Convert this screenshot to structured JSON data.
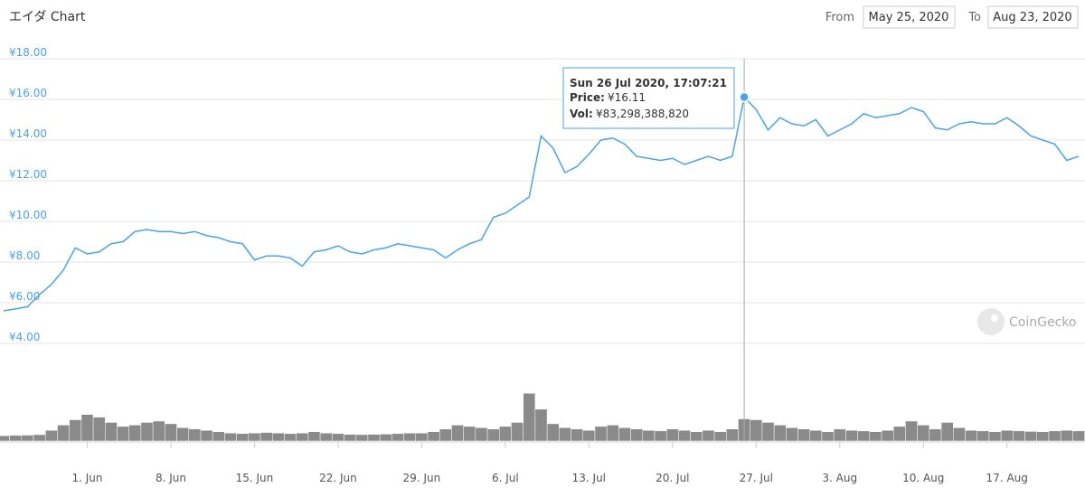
{
  "title": "エイダ Chart",
  "range": {
    "from_label": "From",
    "from": "May 25, 2020",
    "to_label": "To",
    "to": "Aug 23, 2020"
  },
  "watermark": "CoinGecko",
  "tooltip": {
    "time": "Sun 26 Jul 2020, 17:07:21",
    "price_label": "Price:",
    "price": "¥16.11",
    "vol_label": "Vol:",
    "vol": "¥83,298,388,820"
  },
  "chart_data": {
    "type": "line",
    "x": [
      "2020-05-25",
      "2020-05-26",
      "2020-05-27",
      "2020-05-28",
      "2020-05-29",
      "2020-05-30",
      "2020-05-31",
      "2020-06-01",
      "2020-06-02",
      "2020-06-03",
      "2020-06-04",
      "2020-06-05",
      "2020-06-06",
      "2020-06-07",
      "2020-06-08",
      "2020-06-09",
      "2020-06-10",
      "2020-06-11",
      "2020-06-12",
      "2020-06-13",
      "2020-06-14",
      "2020-06-15",
      "2020-06-16",
      "2020-06-17",
      "2020-06-18",
      "2020-06-19",
      "2020-06-20",
      "2020-06-21",
      "2020-06-22",
      "2020-06-23",
      "2020-06-24",
      "2020-06-25",
      "2020-06-26",
      "2020-06-27",
      "2020-06-28",
      "2020-06-29",
      "2020-06-30",
      "2020-07-01",
      "2020-07-02",
      "2020-07-03",
      "2020-07-04",
      "2020-07-05",
      "2020-07-06",
      "2020-07-07",
      "2020-07-08",
      "2020-07-09",
      "2020-07-10",
      "2020-07-11",
      "2020-07-12",
      "2020-07-13",
      "2020-07-14",
      "2020-07-15",
      "2020-07-16",
      "2020-07-17",
      "2020-07-18",
      "2020-07-19",
      "2020-07-20",
      "2020-07-21",
      "2020-07-22",
      "2020-07-23",
      "2020-07-24",
      "2020-07-25",
      "2020-07-26",
      "2020-07-27",
      "2020-07-28",
      "2020-07-29",
      "2020-07-30",
      "2020-07-31",
      "2020-08-01",
      "2020-08-02",
      "2020-08-03",
      "2020-08-04",
      "2020-08-05",
      "2020-08-06",
      "2020-08-07",
      "2020-08-08",
      "2020-08-09",
      "2020-08-10",
      "2020-08-11",
      "2020-08-12",
      "2020-08-13",
      "2020-08-14",
      "2020-08-15",
      "2020-08-16",
      "2020-08-17",
      "2020-08-18",
      "2020-08-19",
      "2020-08-20",
      "2020-08-21",
      "2020-08-22",
      "2020-08-23"
    ],
    "series": [
      {
        "color": "#4aa3ea",
        "values": [
          5.6,
          5.7,
          5.8,
          6.4,
          6.9,
          7.6,
          8.7,
          8.4,
          8.5,
          8.9,
          9.0,
          9.5,
          9.6,
          9.5,
          9.5,
          9.4,
          9.5,
          9.3,
          9.2,
          9.0,
          8.9,
          8.1,
          8.3,
          8.3,
          8.2,
          7.8,
          8.5,
          8.6,
          8.8,
          8.5,
          8.4,
          8.6,
          8.7,
          8.9,
          8.8,
          8.7,
          8.6,
          8.2,
          8.6,
          8.9,
          9.1,
          10.2,
          10.4,
          10.8,
          11.2,
          14.2,
          13.6,
          12.4,
          12.7,
          13.3,
          14.0,
          14.1,
          13.8,
          13.2,
          13.1,
          13.0,
          13.1,
          12.8,
          13.0,
          13.2,
          13.0,
          13.2,
          16.11,
          15.5,
          14.5,
          15.1,
          14.8,
          14.7,
          15.0,
          14.2,
          14.5,
          14.8,
          15.3,
          15.1,
          15.2,
          15.3,
          15.6,
          15.4,
          14.6,
          14.5,
          14.8,
          14.9,
          14.8,
          14.8,
          15.1,
          14.7,
          14.2,
          14.0,
          13.8,
          13.0,
          13.2
        ]
      },
      {
        "color": "#8a8a8a",
        "axis": "y2",
        "values": [
          20000000000,
          21000000000,
          22000000000,
          24000000000,
          40000000000,
          60000000000,
          80000000000,
          100000000000,
          90000000000,
          70000000000,
          55000000000,
          60000000000,
          70000000000,
          75000000000,
          65000000000,
          50000000000,
          45000000000,
          40000000000,
          35000000000,
          30000000000,
          28000000000,
          30000000000,
          32000000000,
          30000000000,
          28000000000,
          30000000000,
          35000000000,
          30000000000,
          28000000000,
          25000000000,
          24000000000,
          25000000000,
          26000000000,
          28000000000,
          30000000000,
          30000000000,
          35000000000,
          45000000000,
          60000000000,
          55000000000,
          50000000000,
          45000000000,
          55000000000,
          70000000000,
          180000000000,
          120000000000,
          65000000000,
          50000000000,
          45000000000,
          40000000000,
          55000000000,
          60000000000,
          50000000000,
          45000000000,
          40000000000,
          38000000000,
          45000000000,
          40000000000,
          35000000000,
          40000000000,
          35000000000,
          45000000000,
          83298388820,
          80000000000,
          70000000000,
          60000000000,
          50000000000,
          45000000000,
          40000000000,
          35000000000,
          45000000000,
          40000000000,
          38000000000,
          35000000000,
          40000000000,
          55000000000,
          75000000000,
          60000000000,
          45000000000,
          70000000000,
          50000000000,
          40000000000,
          38000000000,
          35000000000,
          40000000000,
          38000000000,
          36000000000,
          35000000000,
          38000000000,
          40000000000,
          38000000000
        ]
      }
    ],
    "xlim": [
      "2020-05-25",
      "2020-08-23"
    ],
    "xticks": [
      {
        "value": "2020-06-01",
        "label": "1. Jun"
      },
      {
        "value": "2020-06-08",
        "label": "8. Jun"
      },
      {
        "value": "2020-06-15",
        "label": "15. Jun"
      },
      {
        "value": "2020-06-22",
        "label": "22. Jun"
      },
      {
        "value": "2020-06-29",
        "label": "29. Jun"
      },
      {
        "value": "2020-07-06",
        "label": "6. Jul"
      },
      {
        "value": "2020-07-13",
        "label": "13. Jul"
      },
      {
        "value": "2020-07-20",
        "label": "20. Jul"
      },
      {
        "value": "2020-07-27",
        "label": "27. Jul"
      },
      {
        "value": "2020-08-03",
        "label": "3. Aug"
      },
      {
        "value": "2020-08-10",
        "label": "10. Aug"
      },
      {
        "value": "2020-08-17",
        "label": "17. Aug"
      }
    ],
    "ylim": [
      4,
      18
    ],
    "yticks": [
      {
        "value": 4,
        "label": "¥4.00"
      },
      {
        "value": 6,
        "label": "¥6.00"
      },
      {
        "value": 8,
        "label": "¥8.00"
      },
      {
        "value": 10,
        "label": "¥10.00"
      },
      {
        "value": 12,
        "label": "¥12.00"
      },
      {
        "value": 14,
        "label": "¥14.00"
      },
      {
        "value": 16,
        "label": "¥16.00"
      },
      {
        "value": 18,
        "label": "¥18.00"
      }
    ],
    "y2lim": [
      0,
      300000000000
    ],
    "grid": true
  }
}
